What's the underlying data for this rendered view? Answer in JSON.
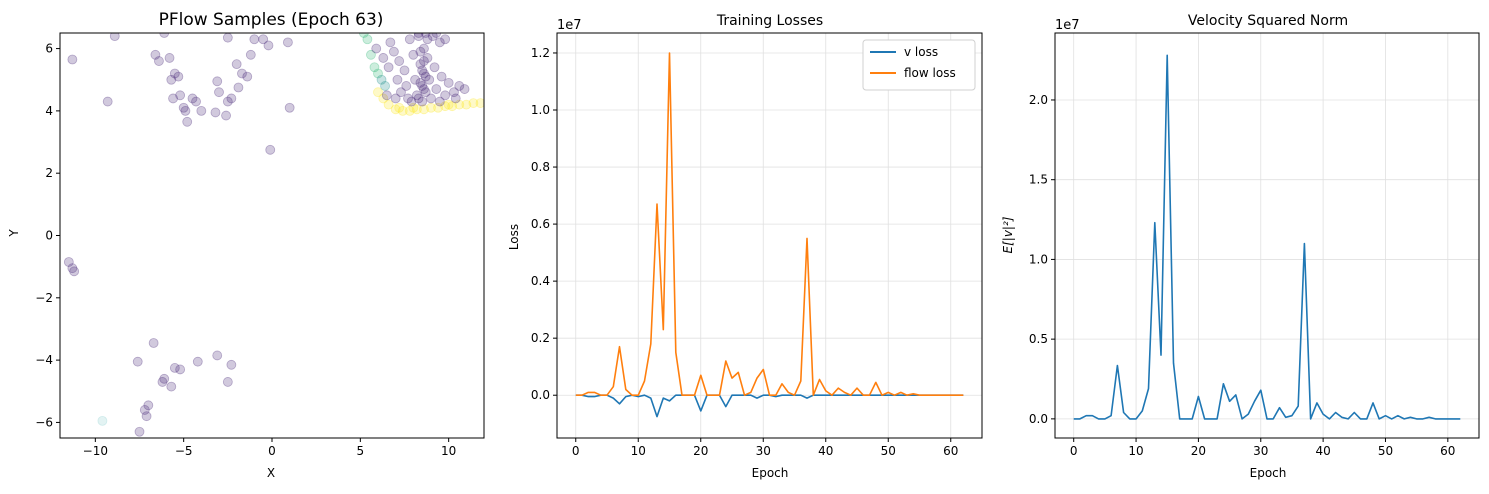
{
  "chart_data": [
    {
      "type": "scatter",
      "title": "PFlow Samples (Epoch 63)",
      "xlabel": "X",
      "ylabel": "Y",
      "xlim": [
        -12,
        12
      ],
      "ylim": [
        -6.5,
        6.5
      ],
      "xticks": [
        -10,
        -5,
        0,
        5,
        10
      ],
      "yticks": [
        -6,
        -4,
        -2,
        0,
        2,
        4,
        6
      ],
      "grid": false,
      "colors": {
        "purple": "#482878",
        "teal": "#21918c",
        "green": "#35b779",
        "yellow": "#fde725",
        "lightblue": "#8fd0d0"
      },
      "points": [
        {
          "x": -11.3,
          "y": 5.65,
          "c": "purple"
        },
        {
          "x": -9.3,
          "y": 4.3,
          "c": "purple"
        },
        {
          "x": -8.9,
          "y": 6.4,
          "c": "purple"
        },
        {
          "x": -6.6,
          "y": 5.8,
          "c": "purple"
        },
        {
          "x": -6.4,
          "y": 5.6,
          "c": "purple"
        },
        {
          "x": -6.1,
          "y": 6.5,
          "c": "purple"
        },
        {
          "x": -5.8,
          "y": 5.7,
          "c": "purple"
        },
        {
          "x": -5.5,
          "y": 5.2,
          "c": "purple"
        },
        {
          "x": -5.3,
          "y": 5.1,
          "c": "purple"
        },
        {
          "x": -5.6,
          "y": 4.4,
          "c": "purple"
        },
        {
          "x": -5.2,
          "y": 4.5,
          "c": "purple"
        },
        {
          "x": -5.0,
          "y": 4.1,
          "c": "purple"
        },
        {
          "x": -4.8,
          "y": 3.65,
          "c": "purple"
        },
        {
          "x": -4.5,
          "y": 4.4,
          "c": "purple"
        },
        {
          "x": -4.3,
          "y": 4.3,
          "c": "purple"
        },
        {
          "x": -4.0,
          "y": 4.0,
          "c": "purple"
        },
        {
          "x": -3.2,
          "y": 3.95,
          "c": "purple"
        },
        {
          "x": -3.1,
          "y": 4.95,
          "c": "purple"
        },
        {
          "x": -3.0,
          "y": 4.6,
          "c": "purple"
        },
        {
          "x": -2.6,
          "y": 3.85,
          "c": "purple"
        },
        {
          "x": -2.5,
          "y": 4.3,
          "c": "purple"
        },
        {
          "x": -2.3,
          "y": 4.4,
          "c": "purple"
        },
        {
          "x": -2.0,
          "y": 5.5,
          "c": "purple"
        },
        {
          "x": -1.7,
          "y": 5.2,
          "c": "purple"
        },
        {
          "x": -1.4,
          "y": 5.1,
          "c": "purple"
        },
        {
          "x": -1.2,
          "y": 5.8,
          "c": "purple"
        },
        {
          "x": -1.0,
          "y": 6.3,
          "c": "purple"
        },
        {
          "x": -0.5,
          "y": 6.3,
          "c": "purple"
        },
        {
          "x": -0.2,
          "y": 6.1,
          "c": "purple"
        },
        {
          "x": 0.9,
          "y": 6.2,
          "c": "purple"
        },
        {
          "x": 1.0,
          "y": 4.1,
          "c": "purple"
        },
        {
          "x": -0.1,
          "y": 2.75,
          "c": "purple"
        },
        {
          "x": -2.5,
          "y": 6.35,
          "c": "purple"
        },
        {
          "x": -1.9,
          "y": 4.75,
          "c": "purple"
        },
        {
          "x": -5.7,
          "y": 5.0,
          "c": "purple"
        },
        {
          "x": -4.9,
          "y": 4.0,
          "c": "purple"
        },
        {
          "x": -11.5,
          "y": -0.85,
          "c": "purple"
        },
        {
          "x": -11.3,
          "y": -1.05,
          "c": "purple"
        },
        {
          "x": -11.2,
          "y": -1.15,
          "c": "purple"
        },
        {
          "x": -9.6,
          "y": -5.95,
          "c": "lightblue"
        },
        {
          "x": -7.6,
          "y": -4.05,
          "c": "purple"
        },
        {
          "x": -7.5,
          "y": -6.3,
          "c": "purple"
        },
        {
          "x": -7.2,
          "y": -5.6,
          "c": "purple"
        },
        {
          "x": -7.0,
          "y": -5.45,
          "c": "purple"
        },
        {
          "x": -7.1,
          "y": -5.8,
          "c": "purple"
        },
        {
          "x": -6.7,
          "y": -3.45,
          "c": "purple"
        },
        {
          "x": -6.2,
          "y": -4.7,
          "c": "purple"
        },
        {
          "x": -6.1,
          "y": -4.6,
          "c": "purple"
        },
        {
          "x": -5.7,
          "y": -4.85,
          "c": "purple"
        },
        {
          "x": -5.5,
          "y": -4.25,
          "c": "purple"
        },
        {
          "x": -5.2,
          "y": -4.3,
          "c": "purple"
        },
        {
          "x": -4.2,
          "y": -4.05,
          "c": "purple"
        },
        {
          "x": -3.1,
          "y": -3.85,
          "c": "purple"
        },
        {
          "x": -2.5,
          "y": -4.7,
          "c": "purple"
        },
        {
          "x": -2.3,
          "y": -4.15,
          "c": "purple"
        },
        {
          "x": 5.2,
          "y": 6.5,
          "c": "green"
        },
        {
          "x": 5.4,
          "y": 6.3,
          "c": "green"
        },
        {
          "x": 5.6,
          "y": 5.8,
          "c": "green"
        },
        {
          "x": 5.8,
          "y": 5.4,
          "c": "green"
        },
        {
          "x": 6.0,
          "y": 5.2,
          "c": "green"
        },
        {
          "x": 6.2,
          "y": 5.0,
          "c": "teal"
        },
        {
          "x": 6.4,
          "y": 4.8,
          "c": "teal"
        },
        {
          "x": 6.0,
          "y": 4.6,
          "c": "yellow"
        },
        {
          "x": 6.3,
          "y": 4.4,
          "c": "yellow"
        },
        {
          "x": 6.6,
          "y": 4.2,
          "c": "yellow"
        },
        {
          "x": 7.0,
          "y": 4.05,
          "c": "yellow"
        },
        {
          "x": 7.4,
          "y": 4.0,
          "c": "yellow"
        },
        {
          "x": 7.8,
          "y": 4.0,
          "c": "yellow"
        },
        {
          "x": 8.2,
          "y": 4.05,
          "c": "yellow"
        },
        {
          "x": 8.6,
          "y": 4.05,
          "c": "yellow"
        },
        {
          "x": 9.0,
          "y": 4.1,
          "c": "yellow"
        },
        {
          "x": 9.4,
          "y": 4.1,
          "c": "yellow"
        },
        {
          "x": 9.8,
          "y": 4.15,
          "c": "yellow"
        },
        {
          "x": 10.2,
          "y": 4.15,
          "c": "yellow"
        },
        {
          "x": 10.6,
          "y": 4.2,
          "c": "yellow"
        },
        {
          "x": 11.0,
          "y": 4.2,
          "c": "yellow"
        },
        {
          "x": 11.4,
          "y": 4.25,
          "c": "yellow"
        },
        {
          "x": 11.8,
          "y": 4.25,
          "c": "yellow"
        },
        {
          "x": 7.2,
          "y": 4.1,
          "c": "yellow"
        },
        {
          "x": 8.0,
          "y": 4.1,
          "c": "yellow"
        },
        {
          "x": 10.0,
          "y": 4.2,
          "c": "yellow"
        },
        {
          "x": 5.9,
          "y": 6.0,
          "c": "purple"
        },
        {
          "x": 6.3,
          "y": 5.7,
          "c": "purple"
        },
        {
          "x": 6.6,
          "y": 5.4,
          "c": "purple"
        },
        {
          "x": 6.9,
          "y": 5.9,
          "c": "purple"
        },
        {
          "x": 7.1,
          "y": 5.0,
          "c": "purple"
        },
        {
          "x": 7.3,
          "y": 4.6,
          "c": "purple"
        },
        {
          "x": 7.5,
          "y": 5.3,
          "c": "purple"
        },
        {
          "x": 7.7,
          "y": 4.4,
          "c": "purple"
        },
        {
          "x": 7.8,
          "y": 6.3,
          "c": "purple"
        },
        {
          "x": 8.0,
          "y": 5.8,
          "c": "purple"
        },
        {
          "x": 8.1,
          "y": 5.0,
          "c": "purple"
        },
        {
          "x": 8.2,
          "y": 4.5,
          "c": "purple"
        },
        {
          "x": 8.3,
          "y": 6.4,
          "c": "purple"
        },
        {
          "x": 8.4,
          "y": 5.5,
          "c": "purple"
        },
        {
          "x": 8.5,
          "y": 4.8,
          "c": "purple"
        },
        {
          "x": 8.5,
          "y": 4.3,
          "c": "purple"
        },
        {
          "x": 8.6,
          "y": 6.0,
          "c": "purple"
        },
        {
          "x": 8.6,
          "y": 5.2,
          "c": "purple"
        },
        {
          "x": 8.7,
          "y": 4.6,
          "c": "purple"
        },
        {
          "x": 8.8,
          "y": 5.7,
          "c": "purple"
        },
        {
          "x": 8.8,
          "y": 6.3,
          "c": "purple"
        },
        {
          "x": 8.9,
          "y": 5.0,
          "c": "purple"
        },
        {
          "x": 9.0,
          "y": 4.4,
          "c": "purple"
        },
        {
          "x": 9.1,
          "y": 6.4,
          "c": "purple"
        },
        {
          "x": 9.2,
          "y": 5.4,
          "c": "purple"
        },
        {
          "x": 9.3,
          "y": 4.7,
          "c": "purple"
        },
        {
          "x": 9.5,
          "y": 6.2,
          "c": "purple"
        },
        {
          "x": 9.6,
          "y": 5.1,
          "c": "purple"
        },
        {
          "x": 9.8,
          "y": 4.5,
          "c": "purple"
        },
        {
          "x": 10.0,
          "y": 4.9,
          "c": "purple"
        },
        {
          "x": 10.3,
          "y": 4.6,
          "c": "purple"
        },
        {
          "x": 10.6,
          "y": 4.8,
          "c": "purple"
        },
        {
          "x": 10.9,
          "y": 4.7,
          "c": "purple"
        },
        {
          "x": 8.3,
          "y": 6.5,
          "c": "purple"
        },
        {
          "x": 8.7,
          "y": 6.5,
          "c": "purple"
        },
        {
          "x": 9.3,
          "y": 6.5,
          "c": "purple"
        },
        {
          "x": 9.8,
          "y": 6.3,
          "c": "purple"
        },
        {
          "x": 8.4,
          "y": 5.9,
          "c": "purple"
        },
        {
          "x": 8.6,
          "y": 5.6,
          "c": "purple"
        },
        {
          "x": 8.5,
          "y": 5.3,
          "c": "purple"
        },
        {
          "x": 8.7,
          "y": 5.1,
          "c": "purple"
        },
        {
          "x": 8.4,
          "y": 4.9,
          "c": "purple"
        },
        {
          "x": 8.6,
          "y": 4.7,
          "c": "purple"
        },
        {
          "x": 8.3,
          "y": 4.4,
          "c": "purple"
        },
        {
          "x": 7.9,
          "y": 4.3,
          "c": "purple"
        },
        {
          "x": 7.0,
          "y": 4.4,
          "c": "purple"
        },
        {
          "x": 6.5,
          "y": 4.5,
          "c": "purple"
        },
        {
          "x": 6.7,
          "y": 6.2,
          "c": "purple"
        },
        {
          "x": 7.2,
          "y": 5.6,
          "c": "purple"
        },
        {
          "x": 7.6,
          "y": 4.8,
          "c": "purple"
        },
        {
          "x": 9.5,
          "y": 4.3,
          "c": "purple"
        },
        {
          "x": 10.4,
          "y": 4.4,
          "c": "purple"
        }
      ]
    },
    {
      "type": "line",
      "title": "Training Losses",
      "xlabel": "Epoch",
      "ylabel": "Loss",
      "scale_label": "1e7",
      "xlim": [
        -3,
        65
      ],
      "ylim": [
        -0.15,
        1.27
      ],
      "xticks": [
        0,
        10,
        20,
        30,
        40,
        50,
        60
      ],
      "yticks": [
        0.0,
        0.2,
        0.4,
        0.6,
        0.8,
        1.0,
        1.2
      ],
      "ytick_labels": [
        "0.0",
        "0.2",
        "0.4",
        "0.6",
        "0.8",
        "1.0",
        "1.2"
      ],
      "grid": true,
      "legend": "top-right",
      "series": [
        {
          "name": "v loss",
          "color": "#1f77b4",
          "values": [
            0,
            0,
            -0.005,
            -0.005,
            0,
            0,
            -0.01,
            -0.03,
            -0.005,
            0,
            -0.005,
            0,
            -0.01,
            -0.075,
            -0.01,
            -0.02,
            0,
            0,
            0,
            0,
            -0.055,
            0,
            0,
            0,
            -0.04,
            0,
            0,
            0,
            0,
            -0.01,
            0,
            0,
            -0.005,
            0,
            0,
            0,
            0,
            -0.01,
            0,
            0,
            0,
            0,
            0,
            0,
            0,
            0,
            0,
            0,
            0,
            0,
            0,
            0,
            0,
            0,
            0,
            0,
            0,
            0,
            0,
            0,
            0,
            0,
            0
          ]
        },
        {
          "name": "flow loss",
          "color": "#ff7f0e",
          "values": [
            0,
            0,
            0.01,
            0.01,
            0,
            0,
            0.03,
            0.17,
            0.02,
            0,
            0,
            0.05,
            0.18,
            0.67,
            0.23,
            1.2,
            0.15,
            0,
            0,
            0,
            0.07,
            0,
            0,
            0,
            0.12,
            0.06,
            0.08,
            0,
            0.01,
            0.06,
            0.09,
            0,
            0,
            0.04,
            0.01,
            0,
            0.05,
            0.55,
            0,
            0.055,
            0.015,
            0,
            0.025,
            0.01,
            0,
            0.025,
            0,
            0,
            0.045,
            0,
            0.01,
            0,
            0.01,
            0,
            0.005,
            0,
            0,
            0,
            0,
            0,
            0,
            0,
            0
          ]
        }
      ]
    },
    {
      "type": "line",
      "title": "Velocity Squared Norm",
      "xlabel": "Epoch",
      "ylabel": "E[|v|²]",
      "scale_label": "1e7",
      "xlim": [
        -3,
        65
      ],
      "ylim": [
        -0.12,
        2.42
      ],
      "xticks": [
        0,
        10,
        20,
        30,
        40,
        50,
        60
      ],
      "yticks": [
        0.0,
        0.5,
        1.0,
        1.5,
        2.0
      ],
      "ytick_labels": [
        "0.0",
        "0.5",
        "1.0",
        "1.5",
        "2.0"
      ],
      "grid": true,
      "series": [
        {
          "name": "",
          "color": "#1f77b4",
          "values": [
            0,
            0,
            0.02,
            0.02,
            0,
            0,
            0.02,
            0.335,
            0.04,
            0,
            0,
            0.05,
            0.19,
            1.23,
            0.4,
            2.28,
            0.35,
            0,
            0,
            0,
            0.14,
            0,
            0,
            0,
            0.22,
            0.11,
            0.15,
            0,
            0.03,
            0.11,
            0.18,
            0,
            0,
            0.07,
            0.01,
            0.02,
            0.08,
            1.1,
            0,
            0.1,
            0.03,
            0,
            0.04,
            0.01,
            0,
            0.04,
            0,
            0,
            0.1,
            0,
            0.02,
            0,
            0.02,
            0,
            0.01,
            0,
            0,
            0.01,
            0,
            0,
            0,
            0,
            0
          ]
        }
      ]
    }
  ]
}
